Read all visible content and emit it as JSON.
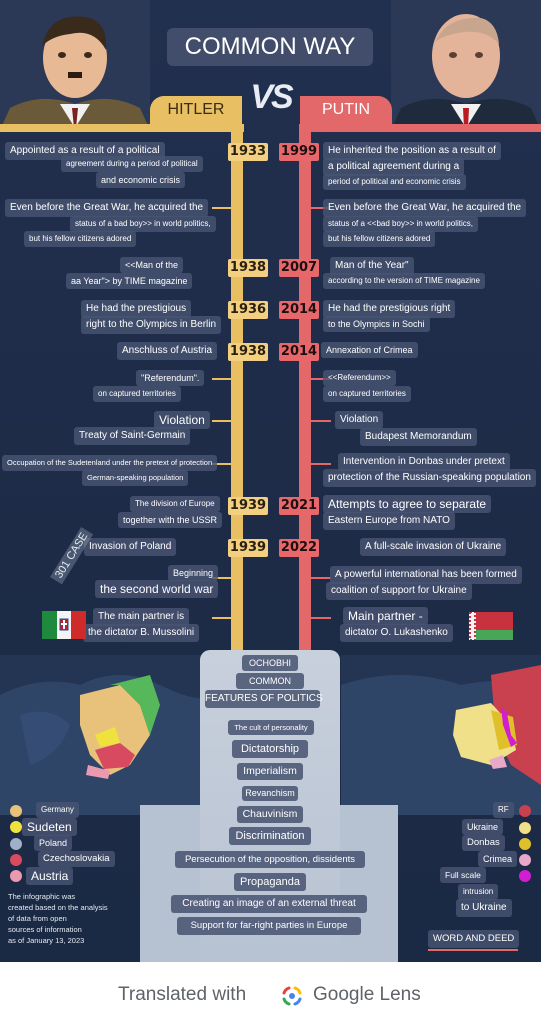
{
  "header": {
    "title": "COMMON WAY",
    "vs": "VS",
    "left_name": "HITLER",
    "right_name": "PUTIN"
  },
  "rows": {
    "r1": {
      "left": [
        "Appointed as a result of a political",
        "agreement during a period of political",
        "and economic crisis"
      ],
      "left_year": "1933",
      "right_year": "1999",
      "right": [
        "He inherited the position as a result of",
        "a political agreement during a",
        "period of political and economic crisis"
      ]
    },
    "r2": {
      "left": [
        "Even before the Great War, he acquired the",
        "status of a bad boy>> in world politics,",
        "but his fellow citizens adored"
      ],
      "right": [
        "Even before the Great War, he acquired the",
        "status of a <<bad boy>> in world politics,",
        "but his fellow citizens adored"
      ]
    },
    "r3": {
      "left": [
        "<<Man of the",
        "aa  Year\"> by TIME magazine"
      ],
      "left_year": "1938",
      "right_year": "2007",
      "right": [
        "Man of the Year\"",
        "according to the version of TIME magazine"
      ]
    },
    "r4": {
      "left": [
        "He had the prestigious",
        "right to the Olympics in Berlin"
      ],
      "left_year": "1936",
      "right_year": "2014",
      "right": [
        "He had the prestigious right",
        "to the Olympics in Sochi"
      ]
    },
    "r5": {
      "left": [
        "Anschluss of Austria"
      ],
      "left_year": "1938",
      "right_year": "2014",
      "right": [
        "Annexation of Crimea"
      ]
    },
    "r6": {
      "left": [
        "\"Referendum\".",
        "on captured territories"
      ],
      "right": [
        "<<Referendum>>",
        "on captured territories"
      ]
    },
    "r7": {
      "left": [
        "Violation",
        "Treaty of Saint-Germain"
      ],
      "right": [
        "Violation",
        "Budapest Memorandum"
      ]
    },
    "r8": {
      "left": [
        "Occupation of the Sudetenland under the pretext of protection",
        "German-speaking population"
      ],
      "right": [
        "Intervention in Donbas under pretext",
        "protection of the Russian-speaking population"
      ]
    },
    "r9": {
      "left": [
        "The division of Europe",
        "together with the USSR"
      ],
      "left_year": "1939",
      "right_year": "2021",
      "right": [
        "Attempts to agree to separate",
        "Eastern Europe from NATO"
      ]
    },
    "r10": {
      "left": [
        "Invasion of Poland"
      ],
      "left_year": "1939",
      "right_year": "2022",
      "right": [
        "A full-scale invasion of Ukraine"
      ]
    },
    "r11": {
      "left": [
        "Beginning",
        "the second world war"
      ],
      "right": [
        "A powerful international has been formed",
        "coalition of support for Ukraine"
      ]
    },
    "r12": {
      "left": [
        "The main partner is",
        "the dictator B. Mussolini"
      ],
      "right": [
        "Main partner -",
        "dictator O. Lukashenko"
      ]
    }
  },
  "watermark": "301 CASE",
  "features": {
    "heading": [
      "OCHOBHI",
      "COMMON",
      "FEATURES OF POLITICS"
    ],
    "items": [
      "The cult of personality",
      "Dictatorship",
      "Imperialism",
      "Revanchism",
      "Chauvinism",
      "Discrimination",
      "Persecution of the opposition, dissidents",
      "Propaganda",
      "Creating an image of an external threat",
      "Support for far-right parties in Europe"
    ]
  },
  "legend_left": {
    "items": [
      {
        "label": "Germany",
        "color": "#e8c27a"
      },
      {
        "label": "Sudeten",
        "color": "#f0e23c"
      },
      {
        "label": "Poland",
        "color": "#9fb0c8"
      },
      {
        "label": "Czechoslovakia",
        "color": "#d84a5f"
      },
      {
        "label": "Austria",
        "color": "#e99ab0"
      }
    ],
    "note": [
      "The infographic was",
      "created based on the analysis",
      "of data from open",
      "sources of information",
      "as of January 13, 2023"
    ]
  },
  "legend_right": {
    "items": [
      {
        "label": "RF",
        "color": "#c9404f"
      },
      {
        "label": "Ukraine",
        "color": "#f0e08a"
      },
      {
        "label": "Donbas",
        "color": "#e0c02a"
      },
      {
        "label": "Crimea",
        "color": "#e8a8c8"
      },
      {
        "label": "Full scale",
        "color": "#d21ed2"
      },
      {
        "label": "intrusion",
        "color": ""
      },
      {
        "label": "to Ukraine",
        "color": ""
      }
    ],
    "tagline": "WORD AND DEED"
  },
  "footer": {
    "translated_with": "Translated with",
    "lens": "Google Lens"
  },
  "colors": {
    "hitler_gold": "#e9bf63",
    "putin_red": "#e26869",
    "background": "#22304f"
  }
}
